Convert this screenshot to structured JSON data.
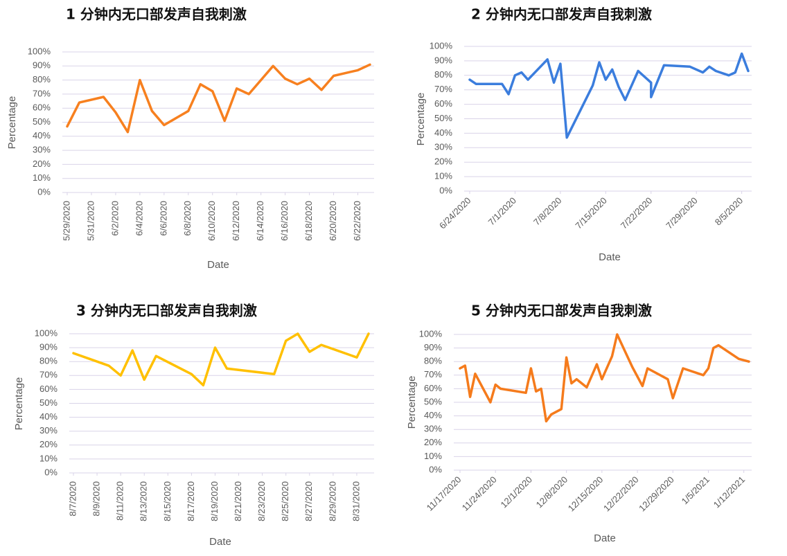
{
  "chart_data": [
    {
      "type": "line",
      "title": "1 分钟内无口部发声自我刺激",
      "xlabel": "Date",
      "ylabel": "Percentage",
      "color": "#f7801f",
      "x": [
        "5/29/2020",
        "5/30/2020",
        "6/1/2020",
        "6/2/2020",
        "6/3/2020",
        "6/4/2020",
        "6/5/2020",
        "6/6/2020",
        "6/8/2020",
        "6/9/2020",
        "6/10/2020",
        "6/11/2020",
        "6/12/2020",
        "6/13/2020",
        "6/15/2020",
        "6/16/2020",
        "6/17/2020",
        "6/18/2020",
        "6/19/2020",
        "6/20/2020",
        "6/22/2020",
        "6/23/2020"
      ],
      "values": [
        47,
        64,
        68,
        57,
        43,
        80,
        58,
        48,
        58,
        77,
        72,
        51,
        74,
        70,
        90,
        81,
        77,
        81,
        73,
        83,
        87,
        91
      ],
      "xlim": [
        "5/29/2020",
        "6/23/2020"
      ],
      "xticks": [
        "5/29/2020",
        "5/31/2020",
        "6/2/2020",
        "6/4/2020",
        "6/6/2020",
        "6/8/2020",
        "6/10/2020",
        "6/12/2020",
        "6/14/2020",
        "6/16/2020",
        "6/18/2020",
        "6/20/2020",
        "6/22/2020"
      ],
      "ylim": [
        0,
        100
      ],
      "yticks": [
        {
          "value": 0,
          "label": "0%"
        },
        {
          "value": 10,
          "label": "10%"
        },
        {
          "value": 20,
          "label": "20%"
        },
        {
          "value": 30,
          "label": "30%"
        },
        {
          "value": 40,
          "label": "40%"
        },
        {
          "value": 50,
          "label": "50%"
        },
        {
          "value": 60,
          "label": "60%"
        },
        {
          "value": 70,
          "label": "70%"
        },
        {
          "value": 80,
          "label": "80%"
        },
        {
          "value": 90,
          "label": "90%"
        },
        {
          "value": 100,
          "label": "100%"
        }
      ],
      "grid": true
    },
    {
      "type": "line",
      "title": "2 分钟内无口部发声自我刺激",
      "xlabel": "Date",
      "ylabel": "Percentage",
      "color": "#3b7ddd",
      "x": [
        "6/24/2020",
        "6/25/2020",
        "6/29/2020",
        "6/30/2020",
        "7/1/2020",
        "7/2/2020",
        "7/3/2020",
        "7/6/2020",
        "7/7/2020",
        "7/8/2020",
        "7/9/2020",
        "7/13/2020",
        "7/14/2020",
        "7/15/2020",
        "7/16/2020",
        "7/17/2020",
        "7/18/2020",
        "7/20/2020",
        "7/22/2020",
        "7/22/2020",
        "7/24/2020",
        "7/28/2020",
        "7/30/2020",
        "7/31/2020",
        "8/1/2020",
        "8/3/2020",
        "8/4/2020",
        "8/5/2020",
        "8/6/2020"
      ],
      "values": [
        77,
        74,
        74,
        67,
        80,
        82,
        77,
        91,
        75,
        88,
        37,
        73,
        89,
        77,
        84,
        72,
        63,
        83,
        75,
        65,
        87,
        86,
        82,
        86,
        83,
        80,
        82,
        95,
        83
      ],
      "xlim": [
        "6/24/2020",
        "8/6/2020"
      ],
      "xticks": [
        "6/24/2020",
        "7/1/2020",
        "7/8/2020",
        "7/15/2020",
        "7/22/2020",
        "7/29/2020",
        "8/5/2020"
      ],
      "ylim": [
        0,
        100
      ],
      "yticks": [
        {
          "value": 0,
          "label": "0%"
        },
        {
          "value": 10,
          "label": "10%"
        },
        {
          "value": 20,
          "label": "20%"
        },
        {
          "value": 30,
          "label": "30%"
        },
        {
          "value": 40,
          "label": "40%"
        },
        {
          "value": 50,
          "label": "50%"
        },
        {
          "value": 60,
          "label": "60%"
        },
        {
          "value": 70,
          "label": "70%"
        },
        {
          "value": 80,
          "label": "80%"
        },
        {
          "value": 90,
          "label": "90%"
        },
        {
          "value": 100,
          "label": "100%"
        }
      ],
      "grid": true
    },
    {
      "type": "line",
      "title": "3 分钟内无口部发声自我刺激",
      "xlabel": "Date",
      "ylabel": "Percentage",
      "color": "#ffc000",
      "x": [
        "8/7/2020",
        "8/10/2020",
        "8/11/2020",
        "8/12/2020",
        "8/13/2020",
        "8/14/2020",
        "8/17/2020",
        "8/18/2020",
        "8/19/2020",
        "8/20/2020",
        "8/24/2020",
        "8/25/2020",
        "8/26/2020",
        "8/27/2020",
        "8/28/2020",
        "8/31/2020",
        "9/1/2020"
      ],
      "values": [
        86,
        77,
        70,
        88,
        67,
        84,
        71,
        63,
        90,
        75,
        71,
        95,
        100,
        87,
        92,
        83,
        100
      ],
      "xlim": [
        "8/7/2020",
        "9/1/2020"
      ],
      "xticks": [
        "8/7/2020",
        "8/9/2020",
        "8/11/2020",
        "8/13/2020",
        "8/15/2020",
        "8/17/2020",
        "8/19/2020",
        "8/21/2020",
        "8/23/2020",
        "8/25/2020",
        "8/27/2020",
        "8/29/2020",
        "8/31/2020"
      ],
      "ylim": [
        0,
        100
      ],
      "yticks": [
        {
          "value": 0,
          "label": "0%"
        },
        {
          "value": 10,
          "label": "10%"
        },
        {
          "value": 20,
          "label": "20%"
        },
        {
          "value": 30,
          "label": "30%"
        },
        {
          "value": 40,
          "label": "40%"
        },
        {
          "value": 50,
          "label": "50%"
        },
        {
          "value": 60,
          "label": "60%"
        },
        {
          "value": 70,
          "label": "70%"
        },
        {
          "value": 80,
          "label": "80%"
        },
        {
          "value": 90,
          "label": "90%"
        },
        {
          "value": 100,
          "label": "100%"
        }
      ],
      "grid": true
    },
    {
      "type": "line",
      "title": "5 分钟内无口部发声自我刺激",
      "xlabel": "Date",
      "ylabel": "Percentage",
      "color": "#f57b1c",
      "x": [
        "11/17/2020",
        "11/18/2020",
        "11/19/2020",
        "11/20/2020",
        "11/23/2020",
        "11/24/2020",
        "11/25/2020",
        "11/30/2020",
        "12/1/2020",
        "12/2/2020",
        "12/3/2020",
        "12/4/2020",
        "12/5/2020",
        "12/7/2020",
        "12/8/2020",
        "12/9/2020",
        "12/10/2020",
        "12/12/2020",
        "12/14/2020",
        "12/15/2020",
        "12/17/2020",
        "12/18/2020",
        "12/21/2020",
        "12/23/2020",
        "12/24/2020",
        "12/28/2020",
        "12/29/2020",
        "12/31/2020",
        "1/4/2021",
        "1/5/2021",
        "1/6/2021",
        "1/7/2021",
        "1/11/2021",
        "1/13/2021"
      ],
      "values": [
        75,
        77,
        54,
        71,
        50,
        63,
        60,
        57,
        75,
        58,
        60,
        36,
        41,
        45,
        83,
        64,
        67,
        61,
        78,
        67,
        84,
        100,
        76,
        62,
        75,
        67,
        53,
        75,
        70,
        75,
        90,
        92,
        82,
        80
      ],
      "xlim": [
        "11/17/2020",
        "1/13/2021"
      ],
      "xticks": [
        "11/17/2020",
        "11/24/2020",
        "12/1/2020",
        "12/8/2020",
        "12/15/2020",
        "12/22/2020",
        "12/29/2020",
        "1/5/2021",
        "1/12/2021"
      ],
      "ylim": [
        0,
        100
      ],
      "yticks": [
        {
          "value": 0,
          "label": "0%"
        },
        {
          "value": 10,
          "label": "10%"
        },
        {
          "value": 20,
          "label": "20%"
        },
        {
          "value": 30,
          "label": "30%"
        },
        {
          "value": 40,
          "label": "40%"
        },
        {
          "value": 50,
          "label": "50%"
        },
        {
          "value": 60,
          "label": "60%"
        },
        {
          "value": 70,
          "label": "70%"
        },
        {
          "value": 80,
          "label": "80%"
        },
        {
          "value": 90,
          "label": "90%"
        },
        {
          "value": 100,
          "label": "100%"
        }
      ],
      "grid": true
    }
  ]
}
